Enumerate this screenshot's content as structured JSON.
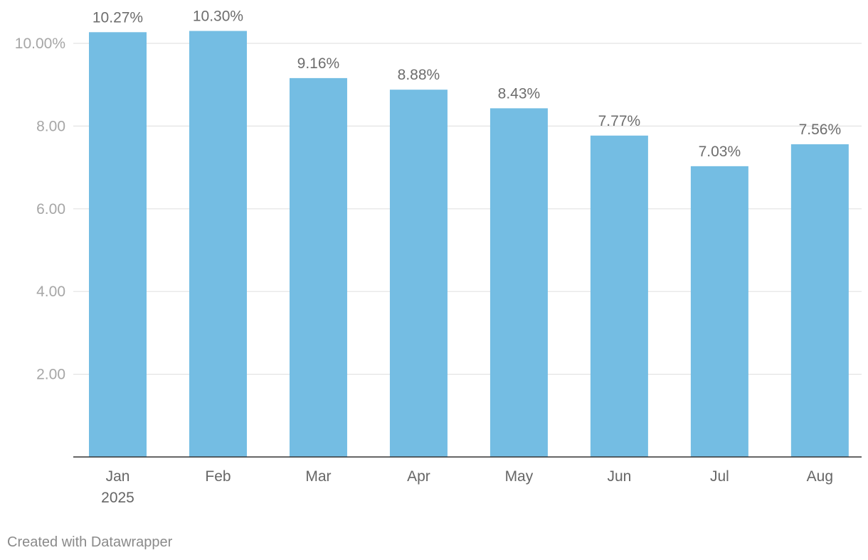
{
  "chart_data": {
    "type": "bar",
    "title": "",
    "xlabel": "",
    "ylabel": "",
    "categories": [
      "Jan",
      "Feb",
      "Mar",
      "Apr",
      "May",
      "Jun",
      "Jul",
      "Aug"
    ],
    "category_sublabels": [
      "2025",
      "",
      "",
      "",
      "",
      "",
      "",
      ""
    ],
    "values": [
      10.27,
      10.3,
      9.16,
      8.88,
      8.43,
      7.77,
      7.03,
      7.56
    ],
    "data_labels": [
      "10.27%",
      "10.30%",
      "9.16%",
      "8.88%",
      "8.43%",
      "7.77%",
      "7.03%",
      "7.56%"
    ],
    "y_ticks": [
      2,
      4,
      6,
      8,
      10
    ],
    "y_tick_labels": [
      "2.00",
      "4.00",
      "6.00",
      "8.00",
      "10.00%"
    ],
    "ylim": [
      0,
      10.5
    ],
    "grid": true,
    "legend": "none",
    "bar_color": "#74bde3"
  },
  "footer": {
    "credit": "Created with Datawrapper"
  }
}
